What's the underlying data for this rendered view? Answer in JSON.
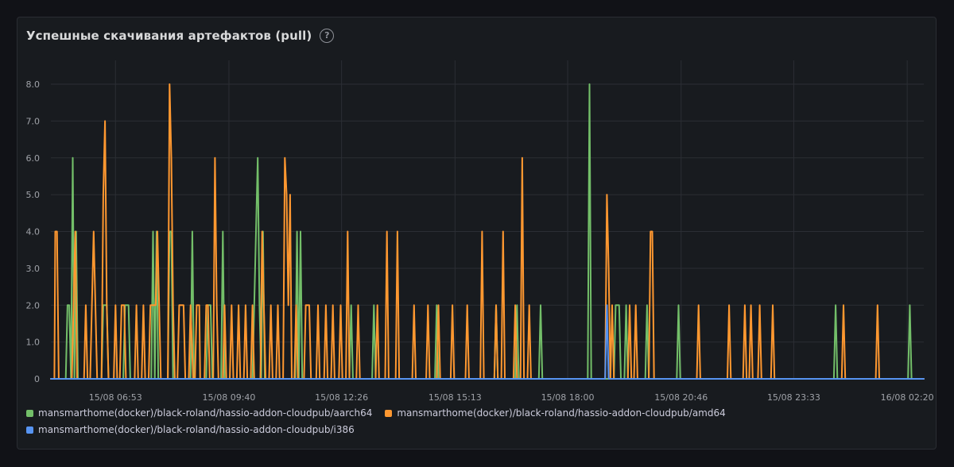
{
  "panel": {
    "title": "Успешные скачивания артефактов (pull)",
    "help_icon": "question-circle-icon"
  },
  "colors": {
    "background": "#111217",
    "panel": "#181b1f",
    "grid": "#2b2e34",
    "series_green": "#73bf69",
    "series_orange": "#ff9830",
    "series_blue": "#5794f2"
  },
  "chart_data": {
    "type": "line",
    "title": "Успешные скачивания артефактов (pull)",
    "xlabel": "",
    "ylabel": "",
    "x_range": [
      0,
      1
    ],
    "y_range": [
      0,
      8
    ],
    "y_ticks": [
      0,
      1,
      2,
      3,
      4,
      5,
      6,
      7,
      8
    ],
    "y_tick_labels": [
      "0",
      "1.0",
      "2.0",
      "3.0",
      "4.0",
      "5.0",
      "6.0",
      "7.0",
      "8.0"
    ],
    "x_ticks": [
      0.074,
      0.204,
      0.333,
      0.463,
      0.592,
      0.722,
      0.851,
      0.981
    ],
    "x_tick_labels": [
      "15/08 06:53",
      "15/08 09:40",
      "15/08 12:26",
      "15/08 15:13",
      "15/08 18:00",
      "15/08 20:46",
      "15/08 23:33",
      "16/08 02:20"
    ],
    "grid": true,
    "legend_position": "bottom",
    "series": [
      {
        "name": "mansmarthome(docker)/black-roland/hassio-addon-cloudpub/aarch64",
        "color": "#73bf69",
        "points": [
          [
            0.0,
            0
          ],
          [
            0.017,
            0
          ],
          [
            0.019,
            2
          ],
          [
            0.021,
            2
          ],
          [
            0.023,
            0
          ],
          [
            0.025,
            6
          ],
          [
            0.027,
            0
          ],
          [
            0.029,
            4
          ],
          [
            0.031,
            0
          ],
          [
            0.058,
            0
          ],
          [
            0.06,
            2
          ],
          [
            0.064,
            2
          ],
          [
            0.066,
            0
          ],
          [
            0.083,
            0
          ],
          [
            0.085,
            2
          ],
          [
            0.089,
            2
          ],
          [
            0.091,
            0
          ],
          [
            0.115,
            0
          ],
          [
            0.117,
            4
          ],
          [
            0.119,
            0
          ],
          [
            0.121,
            4
          ],
          [
            0.123,
            0
          ],
          [
            0.134,
            0
          ],
          [
            0.136,
            4
          ],
          [
            0.138,
            4
          ],
          [
            0.14,
            0
          ],
          [
            0.16,
            0
          ],
          [
            0.162,
            4
          ],
          [
            0.164,
            0
          ],
          [
            0.178,
            0
          ],
          [
            0.18,
            2
          ],
          [
            0.183,
            2
          ],
          [
            0.185,
            0
          ],
          [
            0.195,
            0
          ],
          [
            0.197,
            4
          ],
          [
            0.199,
            0
          ],
          [
            0.231,
            0
          ],
          [
            0.233,
            2
          ],
          [
            0.235,
            4
          ],
          [
            0.237,
            6
          ],
          [
            0.239,
            2
          ],
          [
            0.241,
            0
          ],
          [
            0.243,
            4
          ],
          [
            0.245,
            0
          ],
          [
            0.28,
            0
          ],
          [
            0.282,
            4
          ],
          [
            0.284,
            0
          ],
          [
            0.286,
            4
          ],
          [
            0.288,
            0
          ],
          [
            0.342,
            0
          ],
          [
            0.344,
            2
          ],
          [
            0.346,
            0
          ],
          [
            0.368,
            0
          ],
          [
            0.37,
            2
          ],
          [
            0.372,
            0
          ],
          [
            0.44,
            0
          ],
          [
            0.442,
            2
          ],
          [
            0.444,
            0
          ],
          [
            0.508,
            0
          ],
          [
            0.51,
            2
          ],
          [
            0.512,
            0
          ],
          [
            0.532,
            0
          ],
          [
            0.534,
            2
          ],
          [
            0.536,
            0
          ],
          [
            0.559,
            0
          ],
          [
            0.561,
            2
          ],
          [
            0.563,
            0
          ],
          [
            0.615,
            0
          ],
          [
            0.617,
            8
          ],
          [
            0.619,
            0
          ],
          [
            0.645,
            0
          ],
          [
            0.647,
            2
          ],
          [
            0.651,
            2
          ],
          [
            0.653,
            0
          ],
          [
            0.657,
            0
          ],
          [
            0.659,
            2
          ],
          [
            0.661,
            0
          ],
          [
            0.681,
            0
          ],
          [
            0.683,
            2
          ],
          [
            0.685,
            0
          ],
          [
            0.717,
            0
          ],
          [
            0.719,
            2
          ],
          [
            0.721,
            0
          ],
          [
            0.897,
            0
          ],
          [
            0.899,
            2
          ],
          [
            0.901,
            0
          ],
          [
            0.982,
            0
          ],
          [
            0.984,
            2
          ],
          [
            0.986,
            0
          ],
          [
            1.0,
            0
          ]
        ]
      },
      {
        "name": "mansmarthome(docker)/black-roland/hassio-addon-cloudpub/amd64",
        "color": "#ff9830",
        "points": [
          [
            0.0,
            0
          ],
          [
            0.004,
            0
          ],
          [
            0.005,
            4
          ],
          [
            0.007,
            4
          ],
          [
            0.009,
            0
          ],
          [
            0.024,
            0
          ],
          [
            0.026,
            2
          ],
          [
            0.028,
            4
          ],
          [
            0.03,
            0
          ],
          [
            0.038,
            0
          ],
          [
            0.04,
            2
          ],
          [
            0.042,
            0
          ],
          [
            0.045,
            0
          ],
          [
            0.047,
            2
          ],
          [
            0.049,
            4
          ],
          [
            0.051,
            2
          ],
          [
            0.053,
            0
          ],
          [
            0.058,
            0
          ],
          [
            0.06,
            5
          ],
          [
            0.062,
            7
          ],
          [
            0.064,
            2
          ],
          [
            0.066,
            0
          ],
          [
            0.072,
            0
          ],
          [
            0.074,
            2
          ],
          [
            0.076,
            0
          ],
          [
            0.079,
            0
          ],
          [
            0.081,
            2
          ],
          [
            0.084,
            2
          ],
          [
            0.086,
            0
          ],
          [
            0.096,
            0
          ],
          [
            0.098,
            2
          ],
          [
            0.1,
            0
          ],
          [
            0.104,
            0
          ],
          [
            0.106,
            2
          ],
          [
            0.108,
            0
          ],
          [
            0.112,
            0
          ],
          [
            0.114,
            2
          ],
          [
            0.117,
            2
          ],
          [
            0.12,
            2
          ],
          [
            0.122,
            4
          ],
          [
            0.124,
            2
          ],
          [
            0.126,
            0
          ],
          [
            0.134,
            0
          ],
          [
            0.136,
            8
          ],
          [
            0.138,
            6
          ],
          [
            0.14,
            2
          ],
          [
            0.142,
            0
          ],
          [
            0.145,
            0
          ],
          [
            0.147,
            2
          ],
          [
            0.152,
            2
          ],
          [
            0.154,
            0
          ],
          [
            0.158,
            0
          ],
          [
            0.16,
            2
          ],
          [
            0.163,
            0
          ],
          [
            0.165,
            0
          ],
          [
            0.167,
            2
          ],
          [
            0.17,
            2
          ],
          [
            0.171,
            0
          ],
          [
            0.176,
            0
          ],
          [
            0.178,
            2
          ],
          [
            0.18,
            2
          ],
          [
            0.182,
            0
          ],
          [
            0.186,
            0
          ],
          [
            0.188,
            6
          ],
          [
            0.19,
            2
          ],
          [
            0.192,
            0
          ],
          [
            0.197,
            0
          ],
          [
            0.199,
            2
          ],
          [
            0.201,
            0
          ],
          [
            0.205,
            0
          ],
          [
            0.207,
            2
          ],
          [
            0.209,
            0
          ],
          [
            0.213,
            0
          ],
          [
            0.215,
            2
          ],
          [
            0.217,
            0
          ],
          [
            0.221,
            0
          ],
          [
            0.223,
            2
          ],
          [
            0.225,
            0
          ],
          [
            0.229,
            0
          ],
          [
            0.231,
            2
          ],
          [
            0.233,
            0
          ],
          [
            0.24,
            0
          ],
          [
            0.242,
            4
          ],
          [
            0.244,
            2
          ],
          [
            0.246,
            0
          ],
          [
            0.25,
            0
          ],
          [
            0.252,
            2
          ],
          [
            0.254,
            0
          ],
          [
            0.258,
            0
          ],
          [
            0.26,
            2
          ],
          [
            0.262,
            0
          ],
          [
            0.266,
            0
          ],
          [
            0.268,
            6
          ],
          [
            0.27,
            5
          ],
          [
            0.272,
            2
          ],
          [
            0.274,
            5
          ],
          [
            0.276,
            0
          ],
          [
            0.279,
            0
          ],
          [
            0.281,
            2
          ],
          [
            0.283,
            0
          ],
          [
            0.29,
            0
          ],
          [
            0.292,
            2
          ],
          [
            0.296,
            2
          ],
          [
            0.298,
            0
          ],
          [
            0.304,
            0
          ],
          [
            0.306,
            2
          ],
          [
            0.308,
            0
          ],
          [
            0.313,
            0
          ],
          [
            0.315,
            2
          ],
          [
            0.317,
            0
          ],
          [
            0.321,
            0
          ],
          [
            0.323,
            2
          ],
          [
            0.325,
            0
          ],
          [
            0.33,
            0
          ],
          [
            0.332,
            2
          ],
          [
            0.334,
            0
          ],
          [
            0.338,
            0
          ],
          [
            0.34,
            4
          ],
          [
            0.342,
            0
          ],
          [
            0.35,
            0
          ],
          [
            0.352,
            2
          ],
          [
            0.354,
            0
          ],
          [
            0.372,
            0
          ],
          [
            0.374,
            2
          ],
          [
            0.376,
            0
          ],
          [
            0.383,
            0
          ],
          [
            0.385,
            4
          ],
          [
            0.387,
            0
          ],
          [
            0.395,
            0
          ],
          [
            0.397,
            4
          ],
          [
            0.399,
            0
          ],
          [
            0.414,
            0
          ],
          [
            0.416,
            2
          ],
          [
            0.418,
            0
          ],
          [
            0.43,
            0
          ],
          [
            0.432,
            2
          ],
          [
            0.434,
            0
          ],
          [
            0.442,
            0
          ],
          [
            0.444,
            2
          ],
          [
            0.446,
            0
          ],
          [
            0.458,
            0
          ],
          [
            0.46,
            2
          ],
          [
            0.462,
            0
          ],
          [
            0.475,
            0
          ],
          [
            0.477,
            2
          ],
          [
            0.479,
            0
          ],
          [
            0.492,
            0
          ],
          [
            0.494,
            4
          ],
          [
            0.496,
            0
          ],
          [
            0.508,
            0
          ],
          [
            0.51,
            2
          ],
          [
            0.512,
            0
          ],
          [
            0.516,
            0
          ],
          [
            0.518,
            4
          ],
          [
            0.52,
            0
          ],
          [
            0.53,
            0
          ],
          [
            0.532,
            2
          ],
          [
            0.534,
            0
          ],
          [
            0.538,
            0
          ],
          [
            0.54,
            6
          ],
          [
            0.542,
            0
          ],
          [
            0.546,
            0
          ],
          [
            0.548,
            2
          ],
          [
            0.55,
            0
          ],
          [
            0.586,
            0
          ],
          [
            0.588,
            0
          ],
          [
            0.635,
            0
          ],
          [
            0.637,
            5
          ],
          [
            0.639,
            3
          ],
          [
            0.641,
            0
          ],
          [
            0.643,
            2
          ],
          [
            0.645,
            0
          ],
          [
            0.661,
            0
          ],
          [
            0.663,
            2
          ],
          [
            0.665,
            0
          ],
          [
            0.668,
            0
          ],
          [
            0.67,
            2
          ],
          [
            0.672,
            0
          ],
          [
            0.685,
            0
          ],
          [
            0.687,
            4
          ],
          [
            0.689,
            4
          ],
          [
            0.691,
            0
          ],
          [
            0.74,
            0
          ],
          [
            0.742,
            2
          ],
          [
            0.744,
            0
          ],
          [
            0.775,
            0
          ],
          [
            0.777,
            2
          ],
          [
            0.779,
            0
          ],
          [
            0.793,
            0
          ],
          [
            0.795,
            2
          ],
          [
            0.797,
            0
          ],
          [
            0.8,
            0
          ],
          [
            0.802,
            2
          ],
          [
            0.804,
            0
          ],
          [
            0.81,
            0
          ],
          [
            0.812,
            2
          ],
          [
            0.814,
            0
          ],
          [
            0.825,
            0
          ],
          [
            0.827,
            2
          ],
          [
            0.829,
            0
          ],
          [
            0.906,
            0
          ],
          [
            0.908,
            2
          ],
          [
            0.91,
            0
          ],
          [
            0.945,
            0
          ],
          [
            0.947,
            2
          ],
          [
            0.949,
            0
          ],
          [
            1.0,
            0
          ]
        ]
      },
      {
        "name": "mansmarthome(docker)/black-roland/hassio-addon-cloudpub/i386",
        "color": "#5794f2",
        "points": [
          [
            0.0,
            0
          ],
          [
            0.635,
            0
          ],
          [
            0.637,
            2
          ],
          [
            0.639,
            0
          ],
          [
            1.0,
            0
          ]
        ]
      }
    ]
  }
}
